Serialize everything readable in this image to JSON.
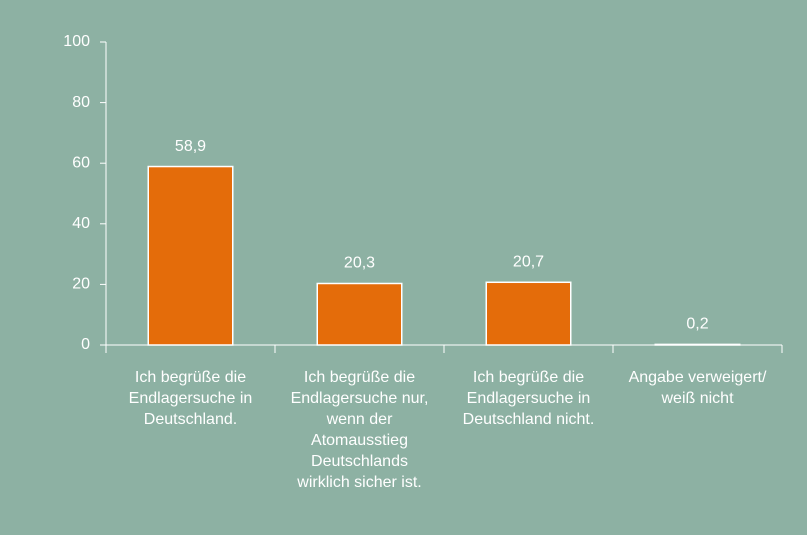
{
  "chart_data": {
    "type": "bar",
    "categories": [
      "Ich begrüße die Endlagersuche in Deutschland.",
      "Ich begrüße die Endlagersuche nur, wenn der Atomausstieg Deutschlands wirklich sicher ist.",
      "Ich begrüße die Endlagersuche in Deutschland nicht.",
      "Angabe verweigert/ weiß nicht"
    ],
    "values": [
      58.9,
      20.3,
      20.7,
      0.2
    ],
    "value_labels": [
      "58,9",
      "20,3",
      "20,7",
      "0,2"
    ],
    "color": "#e46c0a",
    "ylim": [
      0,
      100
    ],
    "yticks": [
      0,
      20,
      40,
      60,
      80,
      100
    ],
    "grid": false
  }
}
